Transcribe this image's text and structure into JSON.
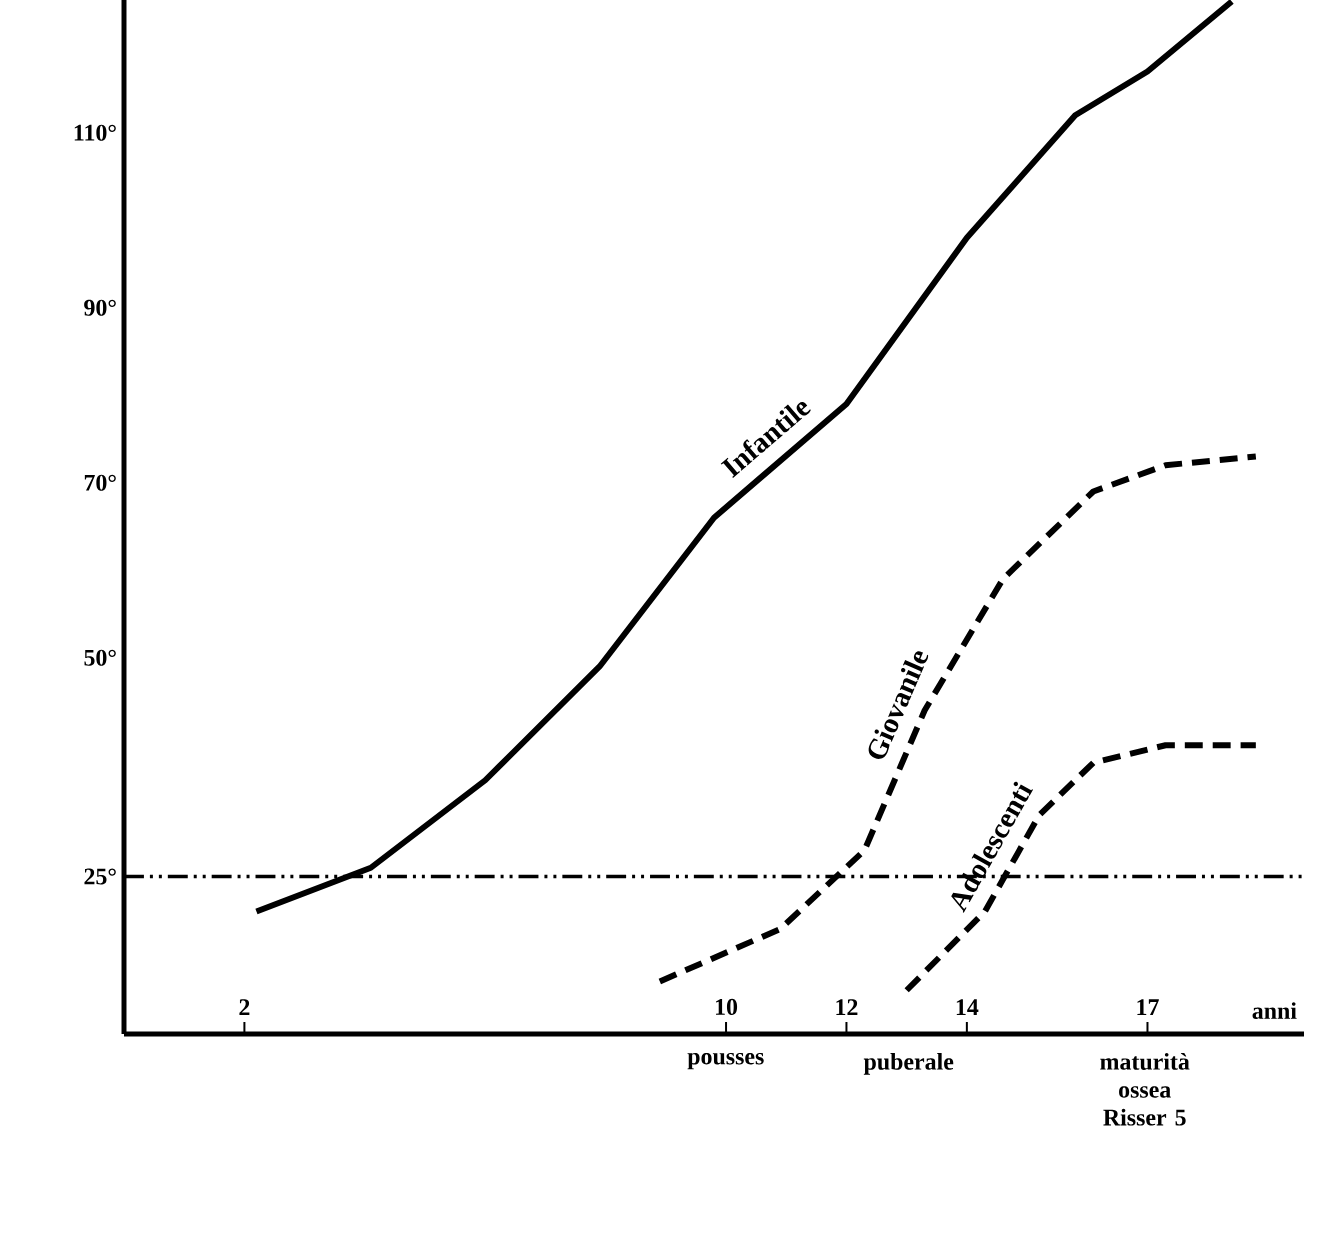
{
  "chart_data": {
    "type": "line",
    "xlabel": "anni",
    "series": [
      {
        "name": "Infantile",
        "color": "#000000",
        "line_style": "solid",
        "x": [
          2.2,
          4.1,
          6.0,
          7.9,
          9.8,
          12,
          14,
          15.8,
          17,
          18.4
        ],
        "values": [
          21,
          26,
          36,
          49,
          66,
          79,
          98,
          112,
          117,
          125
        ]
      },
      {
        "name": "Giovanile",
        "color": "#000000",
        "line_style": "dashed",
        "x": [
          8.9,
          10.9,
          12.3,
          13.3,
          14.6,
          16.1,
          17.3,
          18.8
        ],
        "values": [
          13,
          19,
          28,
          44,
          59,
          69,
          72,
          73
        ]
      },
      {
        "name": "Adolescenti",
        "color": "#000000",
        "line_style": "dashed",
        "x": [
          13,
          14.3,
          15.2,
          16.1,
          17.3,
          18.8
        ],
        "values": [
          12,
          21,
          32,
          38,
          40,
          40
        ]
      }
    ],
    "xlim": [
      0,
      19.6
    ],
    "ylim": [
      7,
      135
    ],
    "xticks": [
      2,
      10,
      12,
      14,
      17
    ],
    "yticks": [
      {
        "value": 25,
        "label": "25°"
      },
      {
        "value": 50,
        "label": "50°"
      },
      {
        "value": 70,
        "label": "70°"
      },
      {
        "value": 90,
        "label": "90°"
      },
      {
        "value": 110,
        "label": "110°"
      }
    ],
    "ref_lines": [
      {
        "axis": "y",
        "value": 25,
        "line_style": "dashed",
        "color": "#000000"
      }
    ],
    "annotations": [
      "pousses",
      "puberale",
      "maturità ossea Risser 5"
    ],
    "grid": false
  }
}
